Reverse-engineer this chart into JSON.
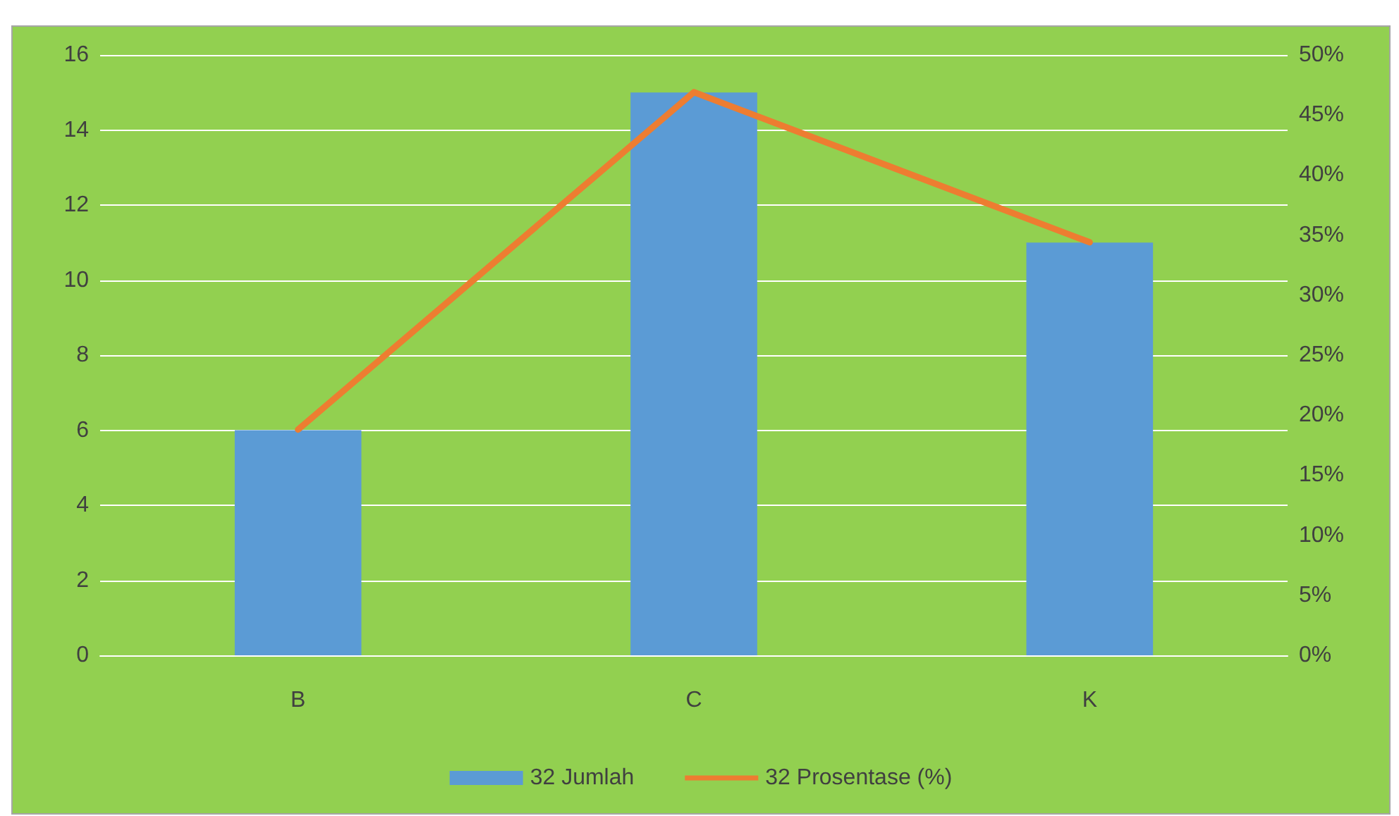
{
  "chart_data": {
    "type": "bar",
    "categories": [
      "B",
      "C",
      "K"
    ],
    "series": [
      {
        "name": "32 Jumlah",
        "color": "#5b9bd5",
        "values": [
          6,
          15,
          11
        ]
      },
      {
        "name": "32 Prosentase (%)",
        "type": "line",
        "axis": "y2",
        "color": "#ed7d31",
        "values": [
          18.8,
          46.9,
          34.4
        ]
      }
    ],
    "ylim": [
      0,
      16
    ],
    "yticks": [
      0,
      2,
      4,
      6,
      8,
      10,
      12,
      14,
      16
    ],
    "y2lim": [
      0,
      50
    ],
    "y2ticks": [
      {
        "value": 0,
        "label": "0%"
      },
      {
        "value": 5,
        "label": "5%"
      },
      {
        "value": 10,
        "label": "10%"
      },
      {
        "value": 15,
        "label": "15%"
      },
      {
        "value": 20,
        "label": "20%"
      },
      {
        "value": 25,
        "label": "25%"
      },
      {
        "value": 30,
        "label": "30%"
      },
      {
        "value": 35,
        "label": "35%"
      },
      {
        "value": 40,
        "label": "40%"
      },
      {
        "value": 45,
        "label": "45%"
      },
      {
        "value": 50,
        "label": "50%"
      }
    ],
    "grid": "y",
    "legend": "bottom",
    "marker": "none"
  }
}
